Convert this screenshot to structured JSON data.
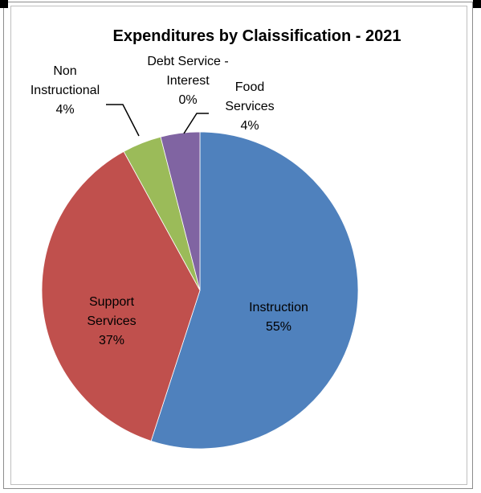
{
  "chart_data": {
    "type": "pie",
    "title": "Expenditures by Claissification - 2021",
    "slices": [
      {
        "name": "Instruction",
        "value": 55,
        "pct_label": "55%",
        "color": "#4f81bd",
        "label_lines": [
          "Instruction",
          "55%"
        ]
      },
      {
        "name": "Support Services",
        "value": 37,
        "pct_label": "37%",
        "color": "#c0504d",
        "label_lines": [
          "Support",
          "Services",
          "37%"
        ]
      },
      {
        "name": "Non Instructional",
        "value": 4,
        "pct_label": "4%",
        "color": "#9bbb59",
        "label_lines": [
          "Non",
          "Instructional",
          "4%"
        ]
      },
      {
        "name": "Debt Service - Interest",
        "value": 0,
        "pct_label": "0%",
        "color": "#4bacc6",
        "label_lines": [
          "Debt Service -",
          "Interest",
          "0%"
        ]
      },
      {
        "name": "Food Services",
        "value": 4,
        "pct_label": "4%",
        "color": "#8064a2",
        "label_lines": [
          "Food",
          "Services",
          "4%"
        ]
      }
    ],
    "legend": "none"
  }
}
